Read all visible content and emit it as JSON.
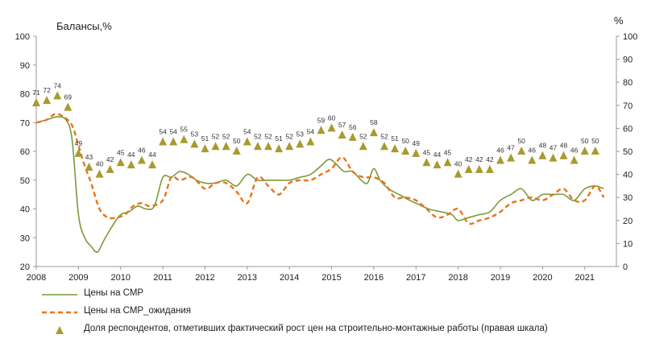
{
  "chart_data": {
    "type": "line",
    "ylabel": "Балансы,%",
    "y2label": "%",
    "ylim": [
      20,
      100
    ],
    "y2lim": [
      0,
      100
    ],
    "yticks": [
      20,
      30,
      40,
      50,
      60,
      70,
      80,
      90,
      100
    ],
    "y2ticks": [
      0,
      10,
      20,
      30,
      40,
      50,
      60,
      70,
      80,
      90,
      100
    ],
    "xlim": [
      2008,
      2021.75
    ],
    "xticks": [
      "2008",
      "2009",
      "2010",
      "2011",
      "2012",
      "2013",
      "2014",
      "2015",
      "2016",
      "2017",
      "2018",
      "2019",
      "2020",
      "2021"
    ],
    "grid": false,
    "legend_position": "bottom",
    "series": [
      {
        "name": "Цены на СМР",
        "axis": "left",
        "style": "solid",
        "color": "#7a9a3a",
        "x": [
          2008.0,
          2008.25,
          2008.5,
          2008.7,
          2008.85,
          2009.0,
          2009.15,
          2009.3,
          2009.45,
          2009.6,
          2009.8,
          2010.0,
          2010.2,
          2010.4,
          2010.6,
          2010.8,
          2011.0,
          2011.2,
          2011.4,
          2011.6,
          2011.8,
          2012.0,
          2012.25,
          2012.5,
          2012.75,
          2013.0,
          2013.25,
          2013.5,
          2013.75,
          2014.0,
          2014.25,
          2014.5,
          2014.75,
          2014.9,
          2015.0,
          2015.15,
          2015.3,
          2015.5,
          2015.7,
          2015.85,
          2016.0,
          2016.15,
          2016.35,
          2016.6,
          2016.85,
          2017.0,
          2017.3,
          2017.6,
          2017.85,
          2018.0,
          2018.25,
          2018.5,
          2018.75,
          2019.0,
          2019.25,
          2019.5,
          2019.75,
          2020.0,
          2020.25,
          2020.5,
          2020.75,
          2021.0,
          2021.25,
          2021.45
        ],
        "values": [
          70,
          71,
          72,
          71,
          64,
          38,
          30,
          27,
          25,
          29,
          34,
          38,
          39,
          41,
          40,
          41,
          51,
          51,
          53,
          52,
          50,
          49,
          49,
          50,
          48,
          52,
          50,
          50,
          50,
          50,
          51,
          52,
          55,
          57,
          57,
          55,
          53,
          53,
          50,
          49,
          54,
          50,
          47,
          45,
          43,
          42,
          40,
          39,
          38,
          36,
          37,
          38,
          39,
          43,
          45,
          47,
          43,
          45,
          45,
          45,
          43,
          47,
          48,
          47
        ]
      },
      {
        "name": "Цены на СМР_ожидания",
        "axis": "left",
        "style": "dashed",
        "color": "#e8741a",
        "x": [
          2008.0,
          2008.25,
          2008.45,
          2008.65,
          2008.85,
          2009.0,
          2009.15,
          2009.3,
          2009.5,
          2009.7,
          2009.9,
          2010.1,
          2010.3,
          2010.5,
          2010.7,
          2011.0,
          2011.2,
          2011.4,
          2011.7,
          2012.0,
          2012.25,
          2012.5,
          2012.75,
          2013.0,
          2013.25,
          2013.5,
          2013.75,
          2014.0,
          2014.25,
          2014.5,
          2014.75,
          2015.0,
          2015.25,
          2015.5,
          2015.75,
          2016.0,
          2016.25,
          2016.5,
          2016.75,
          2017.0,
          2017.25,
          2017.5,
          2017.75,
          2018.0,
          2018.25,
          2018.5,
          2018.75,
          2019.0,
          2019.25,
          2019.5,
          2019.75,
          2020.0,
          2020.25,
          2020.5,
          2020.75,
          2021.0,
          2021.25,
          2021.45
        ],
        "values": [
          70,
          71,
          73,
          72,
          69,
          62,
          55,
          49,
          40,
          37,
          37,
          38,
          41,
          42,
          41,
          43,
          51,
          50,
          51,
          47,
          49,
          49,
          46,
          42,
          51,
          48,
          45,
          49,
          50,
          50,
          52,
          54,
          58,
          53,
          51,
          51,
          49,
          44,
          44,
          43,
          40,
          37,
          38,
          40,
          35,
          36,
          37,
          39,
          42,
          43,
          44,
          43,
          45,
          47,
          43,
          43,
          48,
          44
        ]
      },
      {
        "name": "Доля респондентов, отметивших фактический рост цен на строительно-монтажные работы (правая шкала)",
        "axis": "right",
        "style": "triangle",
        "color": "#a89a2e",
        "x": [
          2008.0,
          2008.25,
          2008.5,
          2008.75,
          2009.0,
          2009.25,
          2009.5,
          2009.75,
          2010.0,
          2010.25,
          2010.5,
          2010.75,
          2011.0,
          2011.25,
          2011.5,
          2011.75,
          2012.0,
          2012.25,
          2012.5,
          2012.75,
          2013.0,
          2013.25,
          2013.5,
          2013.75,
          2014.0,
          2014.25,
          2014.5,
          2014.75,
          2015.0,
          2015.25,
          2015.5,
          2015.75,
          2016.0,
          2016.25,
          2016.5,
          2016.75,
          2017.0,
          2017.25,
          2017.5,
          2017.75,
          2018.0,
          2018.25,
          2018.5,
          2018.75,
          2019.0,
          2019.25,
          2019.5,
          2019.75,
          2020.0,
          2020.25,
          2020.5,
          2020.75,
          2021.0,
          2021.25
        ],
        "values": [
          71,
          72,
          74,
          69,
          49,
          43,
          40,
          42,
          45,
          44,
          46,
          44,
          54,
          54,
          55,
          53,
          51,
          52,
          52,
          50,
          54,
          52,
          52,
          51,
          52,
          53,
          54,
          59,
          60,
          57,
          56,
          52,
          58,
          52,
          51,
          50,
          49,
          45,
          44,
          45,
          40,
          42,
          42,
          42,
          46,
          47,
          50,
          46,
          48,
          47,
          48,
          46,
          50,
          50
        ],
        "labels": [
          "71",
          "72",
          "74",
          "69",
          "49",
          "43",
          "40",
          "42",
          "45",
          "44",
          "46",
          "44",
          "54",
          "54",
          "55",
          "53",
          "51",
          "52",
          "52",
          "50",
          "54",
          "52",
          "52",
          "51",
          "52",
          "53",
          "54",
          "59",
          "60",
          "57",
          "56",
          "52",
          "58",
          "52",
          "51",
          "50",
          "49",
          "45",
          "44",
          "45",
          "40",
          "42",
          "42",
          "42",
          "46",
          "47",
          "50",
          "46",
          "48",
          "47",
          "48",
          "46",
          "50",
          "50"
        ]
      }
    ]
  },
  "legend": {
    "item1": "Цены на СМР",
    "item2": "Цены на СМР_ожидания",
    "item3": "Доля респондентов, отметивших фактический рост цен на строительно-монтажные работы (правая шкала)"
  },
  "colors": {
    "solid": "#7a9a3a",
    "dashed": "#e8741a",
    "marker": "#a89a2e",
    "axis": "#9a9a9a"
  }
}
